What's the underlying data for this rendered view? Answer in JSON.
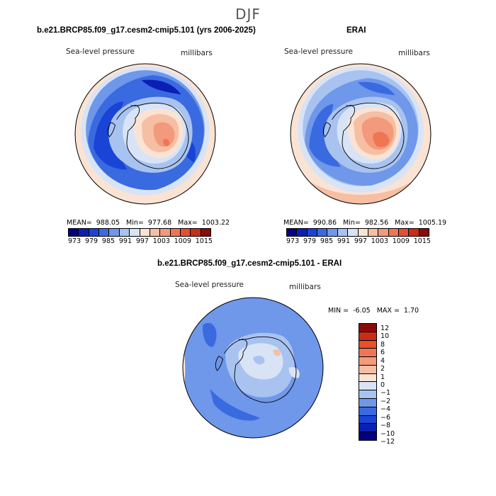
{
  "season": "DJF",
  "colors": {
    "pressure_scale": [
      "#000080",
      "#0a1fb4",
      "#1a44d6",
      "#3a6ae0",
      "#6f97ea",
      "#a8c3f0",
      "#d8e4f6",
      "#fbe3d4",
      "#f6bea3",
      "#f29a7b",
      "#ee7655",
      "#e5502f",
      "#c92d17",
      "#8b0a0a"
    ],
    "diff_scale": [
      "#000080",
      "#0a1fb4",
      "#1a44d6",
      "#3a6ae0",
      "#6f97ea",
      "#a8c3f0",
      "#d8e4f6",
      "#fbe3d4",
      "#f6bea3",
      "#f29a7b",
      "#ee7655",
      "#e5502f",
      "#c92d17",
      "#8b0a0a"
    ],
    "coastline": "#000000"
  },
  "panels": {
    "model": {
      "title": "b.e21.BRCP85.f09_g17.cesm2-cmip5.101 (yrs 2006-2025)",
      "variable": "Sea-level pressure",
      "units": "millibars",
      "mean_label": "MEAN=",
      "mean": "988.05",
      "min_label": "Min=",
      "min": "977.68",
      "max_label": "Max=",
      "max": "1003.22"
    },
    "obs": {
      "title": "ERAI",
      "variable": "Sea-level pressure",
      "units": "millibars",
      "mean_label": "MEAN=",
      "mean": "990.86",
      "min_label": "Min=",
      "min": "982.56",
      "max_label": "Max=",
      "max": "1005.19"
    },
    "diff": {
      "title": "b.e21.BRCP85.f09_g17.cesm2-cmip5.101 - ERAI",
      "variable": "Sea-level pressure",
      "units": "millibars",
      "min_label": "MIN =",
      "min": "-6.05",
      "max_label": "MAX =",
      "max": "1.70"
    }
  },
  "colorbar_labels": [
    "973",
    "979",
    "985",
    "991",
    "997",
    "1003",
    "1009",
    "1015"
  ],
  "diff_colorbar_labels": [
    "12",
    "10",
    "8",
    "6",
    "4",
    "2",
    "1",
    "0",
    "−1",
    "−2",
    "−4",
    "−6",
    "−8",
    "−10",
    "−12"
  ]
}
